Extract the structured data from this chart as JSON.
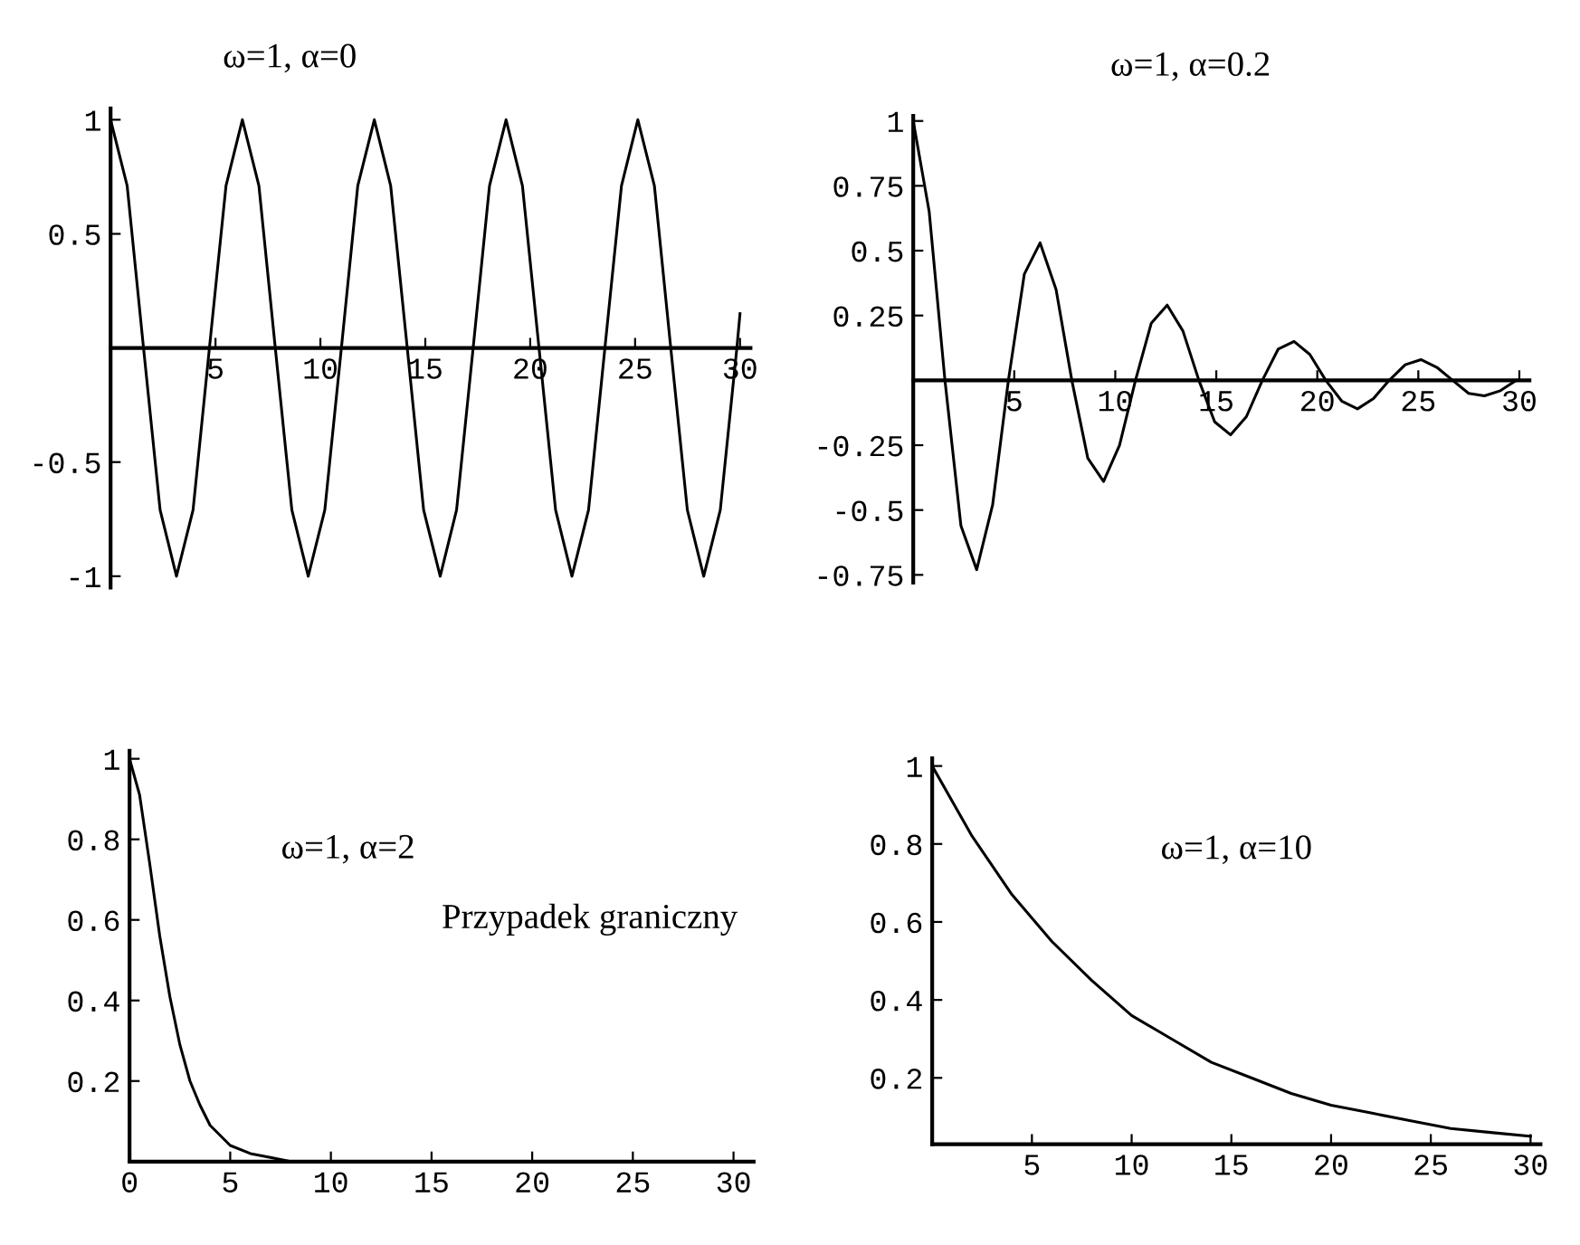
{
  "chart_data": [
    {
      "type": "line",
      "title": "ω=1, α=0",
      "xlim": [
        0,
        30.5
      ],
      "ylim": [
        -1.05,
        1.05
      ],
      "xticks": [
        5,
        10,
        15,
        20,
        25,
        30
      ],
      "yticks": [
        -1,
        -0.5,
        0.5,
        1
      ],
      "grid": false,
      "x": [
        0,
        0.79,
        1.57,
        2.36,
        3.14,
        3.93,
        4.71,
        5.5,
        6.28,
        7.07,
        7.85,
        8.64,
        9.42,
        10.21,
        11.0,
        11.78,
        12.57,
        13.35,
        14.14,
        14.92,
        15.71,
        16.49,
        17.28,
        18.06,
        18.85,
        19.63,
        20.42,
        21.21,
        21.99,
        22.78,
        23.56,
        24.35,
        25.13,
        25.92,
        26.7,
        27.49,
        28.27,
        29.06,
        29.85,
        30.0
      ],
      "series": [
        {
          "color": "#000000",
          "values": [
            1,
            0.71,
            0,
            -0.71,
            -1,
            -0.71,
            0,
            0.71,
            1,
            0.71,
            0,
            -0.71,
            -1,
            -0.71,
            0,
            0.71,
            1,
            0.71,
            0,
            -0.71,
            -1,
            -0.71,
            0,
            0.71,
            1,
            0.71,
            0,
            -0.71,
            -1,
            -0.71,
            0,
            0.71,
            1,
            0.71,
            0,
            -0.71,
            -1,
            -0.71,
            0,
            0.15
          ]
        }
      ]
    },
    {
      "type": "line",
      "title": "ω=1, α=0.2",
      "xlim": [
        0,
        30.5
      ],
      "ylim": [
        -0.78,
        1.02
      ],
      "xticks": [
        5,
        10,
        15,
        20,
        25,
        30
      ],
      "yticks": [
        -0.75,
        -0.5,
        -0.25,
        0.25,
        0.5,
        0.75,
        1
      ],
      "grid": false,
      "x": [
        0,
        0.79,
        1.57,
        2.36,
        3.14,
        3.93,
        4.71,
        5.5,
        6.28,
        7.07,
        7.85,
        8.64,
        9.42,
        10.21,
        11.0,
        11.78,
        12.57,
        13.35,
        14.14,
        14.92,
        15.71,
        16.49,
        17.28,
        18.06,
        18.85,
        19.63,
        20.42,
        21.21,
        21.99,
        22.78,
        23.56,
        24.35,
        25.13,
        25.92,
        26.7,
        27.49,
        28.27,
        29.06,
        29.85
      ],
      "series": [
        {
          "color": "#000000",
          "values": [
            1,
            0.65,
            0,
            -0.56,
            -0.73,
            -0.48,
            0,
            0.41,
            0.53,
            0.35,
            0,
            -0.3,
            -0.39,
            -0.25,
            0,
            0.22,
            0.29,
            0.19,
            0,
            -0.16,
            -0.21,
            -0.14,
            0,
            0.12,
            0.15,
            0.1,
            0,
            -0.08,
            -0.11,
            -0.07,
            0,
            0.06,
            0.08,
            0.05,
            0,
            -0.05,
            -0.06,
            -0.04,
            0
          ]
        }
      ]
    },
    {
      "type": "line",
      "title": "ω=1, α=2",
      "xlim": [
        0,
        31
      ],
      "ylim": [
        0,
        1.02
      ],
      "xticks": [
        0,
        5,
        10,
        15,
        20,
        25,
        30
      ],
      "yticks": [
        0.2,
        0.4,
        0.6,
        0.8,
        1
      ],
      "grid": false,
      "annotations": [
        "Przypadek graniczny"
      ],
      "x": [
        0,
        0.5,
        1,
        1.5,
        2,
        2.5,
        3,
        3.5,
        4,
        5,
        6,
        7,
        8,
        10,
        15,
        20,
        25,
        30
      ],
      "series": [
        {
          "color": "#000000",
          "values": [
            1,
            0.91,
            0.74,
            0.56,
            0.41,
            0.29,
            0.2,
            0.14,
            0.09,
            0.04,
            0.02,
            0.01,
            0,
            0,
            0,
            0,
            0,
            0
          ]
        }
      ]
    },
    {
      "type": "line",
      "title": "ω=1, α=10",
      "xlim": [
        0,
        30.5
      ],
      "ylim": [
        0.03,
        1.02
      ],
      "xticks": [
        5,
        10,
        15,
        20,
        25,
        30
      ],
      "yticks": [
        0.2,
        0.4,
        0.6,
        0.8,
        1
      ],
      "grid": false,
      "x": [
        0,
        2,
        4,
        6,
        8,
        10,
        12,
        14,
        16,
        18,
        20,
        22,
        24,
        26,
        28,
        30
      ],
      "series": [
        {
          "color": "#000000",
          "values": [
            1,
            0.82,
            0.67,
            0.55,
            0.45,
            0.36,
            0.3,
            0.24,
            0.2,
            0.16,
            0.13,
            0.11,
            0.09,
            0.07,
            0.06,
            0.05
          ]
        }
      ]
    }
  ]
}
